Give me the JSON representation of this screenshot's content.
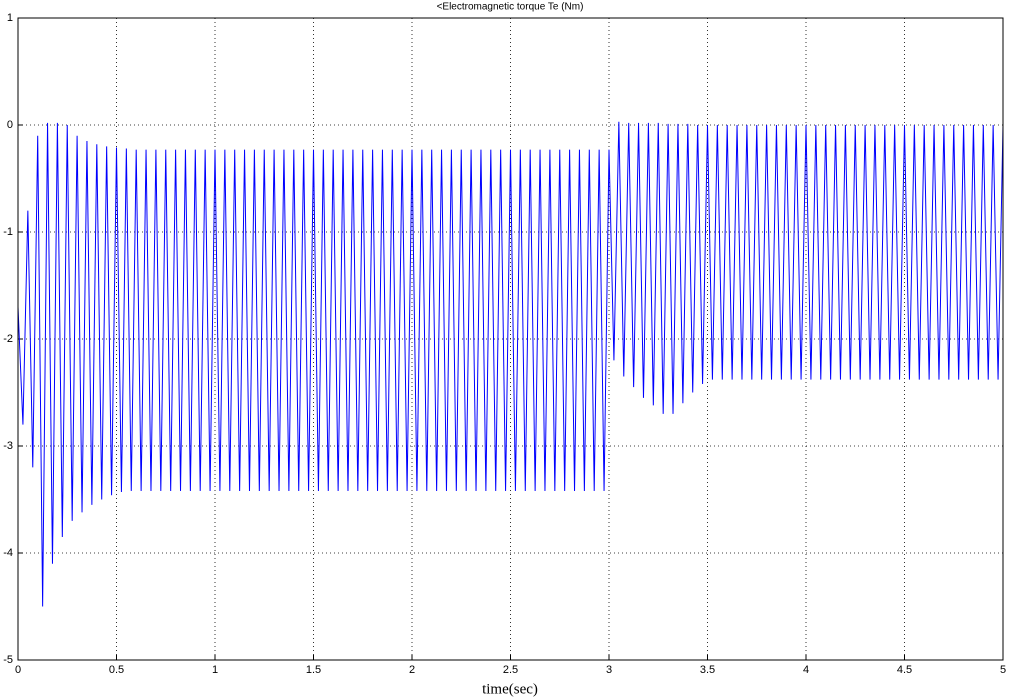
{
  "chart_data": {
    "type": "line",
    "title": "<Electromagnetic torque Te (Nm)",
    "xlabel": "time(sec)",
    "x": [
      0,
      0.025,
      0.05,
      0.075,
      0.1,
      0.125,
      0.15,
      0.175,
      0.2,
      0.225,
      0.25,
      0.275,
      0.3,
      0.325,
      0.35,
      0.375,
      0.4,
      0.425,
      0.45,
      0.475,
      0.5,
      0.525,
      0.55,
      0.575,
      0.6,
      0.625,
      0.65,
      0.675,
      0.7,
      0.725,
      0.75,
      0.775,
      0.8,
      0.825,
      0.85,
      0.875,
      0.9,
      0.925,
      0.95,
      0.975,
      1,
      1.025,
      1.05,
      1.075,
      1.1,
      1.125,
      1.15,
      1.175,
      1.2,
      1.225,
      1.25,
      1.275,
      1.3,
      1.325,
      1.35,
      1.375,
      1.4,
      1.425,
      1.45,
      1.475,
      1.5,
      1.525,
      1.55,
      1.575,
      1.6,
      1.625,
      1.65,
      1.675,
      1.7,
      1.725,
      1.75,
      1.775,
      1.8,
      1.825,
      1.85,
      1.875,
      1.9,
      1.925,
      1.95,
      1.975,
      2,
      2.025,
      2.05,
      2.075,
      2.1,
      2.125,
      2.15,
      2.175,
      2.2,
      2.225,
      2.25,
      2.275,
      2.3,
      2.325,
      2.35,
      2.375,
      2.4,
      2.425,
      2.45,
      2.475,
      2.5,
      2.525,
      2.55,
      2.575,
      2.6,
      2.625,
      2.65,
      2.675,
      2.7,
      2.725,
      2.75,
      2.775,
      2.8,
      2.825,
      2.85,
      2.875,
      2.9,
      2.925,
      2.95,
      2.975,
      3,
      3.025,
      3.05,
      3.075,
      3.1,
      3.125,
      3.15,
      3.175,
      3.2,
      3.225,
      3.25,
      3.275,
      3.3,
      3.325,
      3.35,
      3.375,
      3.4,
      3.425,
      3.45,
      3.475,
      3.5,
      3.525,
      3.55,
      3.575,
      3.6,
      3.625,
      3.65,
      3.675,
      3.7,
      3.725,
      3.75,
      3.775,
      3.8,
      3.825,
      3.85,
      3.875,
      3.9,
      3.925,
      3.95,
      3.975,
      4,
      4.025,
      4.05,
      4.075,
      4.1,
      4.125,
      4.15,
      4.175,
      4.2,
      4.225,
      4.25,
      4.275,
      4.3,
      4.325,
      4.35,
      4.375,
      4.4,
      4.425,
      4.45,
      4.475,
      4.5,
      4.525,
      4.55,
      4.575,
      4.6,
      4.625,
      4.65,
      4.675,
      4.7,
      4.725,
      4.75,
      4.775,
      4.8,
      4.825,
      4.85,
      4.875,
      4.9,
      4.925,
      4.95,
      4.975,
      5
    ],
    "series": [
      {
        "color": "#0000ff",
        "values": [
          -1.7,
          -2.8,
          -0.8,
          -3.2,
          -0.1,
          -4.5,
          0.02,
          -4.1,
          0.02,
          -3.85,
          0,
          -3.7,
          -0.1,
          -3.62,
          -0.15,
          -3.55,
          -0.18,
          -3.5,
          -0.2,
          -3.46,
          -0.21,
          -3.43,
          -0.22,
          -3.42,
          -0.23,
          -3.42,
          -0.23,
          -3.42,
          -0.23,
          -3.42,
          -0.23,
          -3.42,
          -0.23,
          -3.42,
          -0.23,
          -3.42,
          -0.23,
          -3.42,
          -0.23,
          -3.42,
          -0.23,
          -3.42,
          -0.23,
          -3.42,
          -0.23,
          -3.42,
          -0.23,
          -3.42,
          -0.23,
          -3.42,
          -0.23,
          -3.42,
          -0.23,
          -3.42,
          -0.23,
          -3.42,
          -0.23,
          -3.42,
          -0.23,
          -3.42,
          -0.23,
          -3.42,
          -0.23,
          -3.42,
          -0.23,
          -3.42,
          -0.23,
          -3.42,
          -0.23,
          -3.42,
          -0.23,
          -3.42,
          -0.23,
          -3.42,
          -0.23,
          -3.42,
          -0.23,
          -3.42,
          -0.23,
          -3.42,
          -0.23,
          -3.42,
          -0.23,
          -3.42,
          -0.23,
          -3.42,
          -0.23,
          -3.42,
          -0.23,
          -3.42,
          -0.23,
          -3.42,
          -0.23,
          -3.42,
          -0.23,
          -3.42,
          -0.23,
          -3.42,
          -0.23,
          -3.42,
          -0.23,
          -3.42,
          -0.23,
          -3.42,
          -0.23,
          -3.42,
          -0.23,
          -3.42,
          -0.23,
          -3.42,
          -0.23,
          -3.42,
          -0.23,
          -3.42,
          -0.23,
          -3.42,
          -0.23,
          -3.42,
          -0.23,
          -3.42,
          -0.23,
          -2.2,
          0.03,
          -2.35,
          0.02,
          -2.45,
          0.02,
          -2.55,
          0.02,
          -2.62,
          0.02,
          -2.7,
          0.01,
          -2.7,
          0.01,
          -2.6,
          0.01,
          -2.5,
          0,
          -2.42,
          0,
          -2.38,
          0,
          -2.38,
          0,
          -2.38,
          0,
          -2.38,
          0,
          -2.38,
          0,
          -2.38,
          0,
          -2.38,
          0,
          -2.38,
          0,
          -2.38,
          0,
          -2.38,
          0,
          -2.38,
          0,
          -2.38,
          0,
          -2.38,
          0,
          -2.38,
          0,
          -2.38,
          0,
          -2.38,
          0,
          -2.38,
          0,
          -2.38,
          0,
          -2.38,
          0,
          -2.38,
          0,
          -2.38,
          0,
          -2.38,
          0,
          -2.38,
          0,
          -2.38,
          0,
          -2.38,
          0,
          -2.38,
          0,
          -2.38,
          0,
          -2.38,
          0,
          -2.38,
          0,
          -2.38,
          0
        ]
      }
    ],
    "xlim": [
      0,
      5
    ],
    "xticks": [
      0,
      0.5,
      1,
      1.5,
      2,
      2.5,
      3,
      3.5,
      4,
      4.5,
      5
    ],
    "ylim": [
      -5,
      1
    ],
    "yticks": [
      -5,
      -4,
      -3,
      -2,
      -1,
      0,
      1
    ],
    "grid": true
  }
}
